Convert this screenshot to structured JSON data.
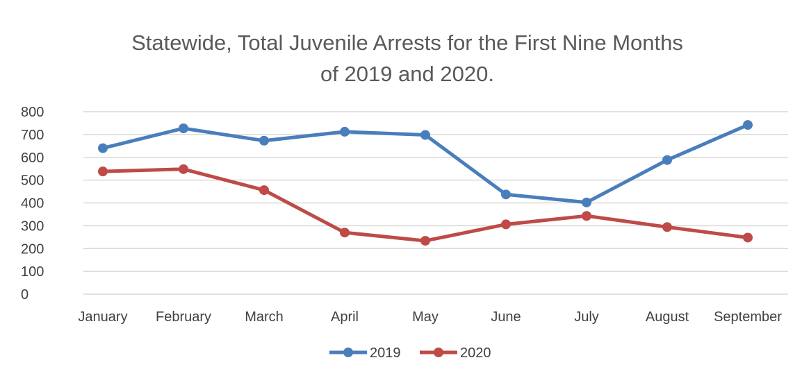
{
  "chart_data": {
    "type": "line",
    "title": "Statewide, Total Juvenile Arrests for the First Nine Months",
    "title_line2": "of 2019 and 2020.",
    "xlabel": "",
    "ylabel": "",
    "categories": [
      "January",
      "February",
      "March",
      "April",
      "May",
      "June",
      "July",
      "August",
      "September"
    ],
    "ylim": [
      0,
      800
    ],
    "yticks": [
      "0",
      "100",
      "200",
      "300",
      "400",
      "500",
      "600",
      "700",
      "800"
    ],
    "grid": true,
    "legend_position": "bottom",
    "series": [
      {
        "name": "2019",
        "color": "#4a7ebb",
        "values": [
          640,
          727,
          673,
          712,
          698,
          437,
          402,
          588,
          742
        ]
      },
      {
        "name": "2020",
        "color": "#be4b48",
        "values": [
          538,
          548,
          456,
          270,
          234,
          306,
          343,
          294,
          248
        ]
      }
    ]
  }
}
